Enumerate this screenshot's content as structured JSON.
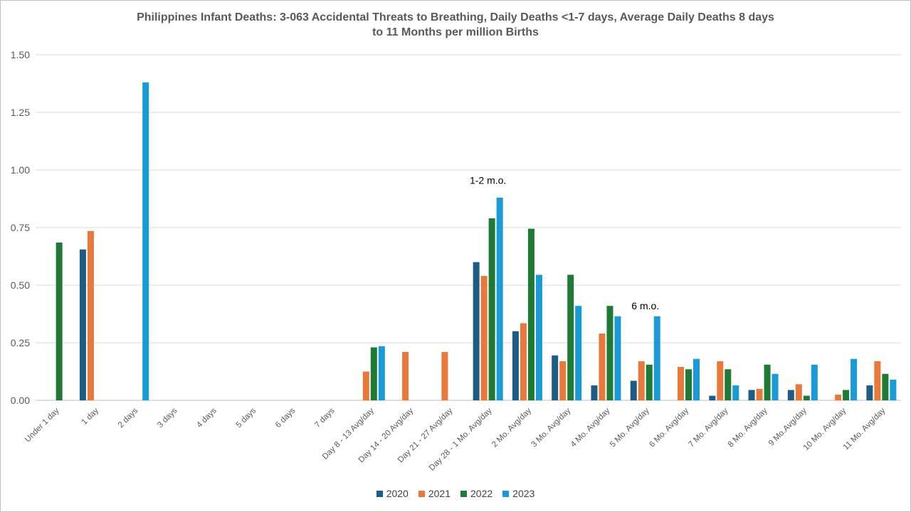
{
  "chart_data": {
    "type": "bar",
    "title_line1": "Philippines Infant Deaths: 3-063 Accidental Threats to Breathing, Daily Deaths <1-7 days, Average Daily Deaths 8 days",
    "title_line2": "to 11 Months per million Births",
    "categories": [
      "Under 1 day",
      "1 day",
      "2 days",
      "3 days",
      "4 days",
      "5 days",
      "6 days",
      "7 days",
      "Day 8 - 13 Avg/day",
      "Day 14 - 20 Avg/day",
      "Day 21 - 27 Avg/day",
      "Day 28 - 1 Mo. Avg/day",
      "2 Mo. Avg/day",
      "3 Mo. Avg/day",
      "4 Mo. Avg/day",
      "5 Mo. Avg/day",
      "6 Mo. Avg/day",
      "7 Mo. Avg/day",
      "8 Mo. Avg/day",
      "9 Mo.Avg/day",
      "10 Mo. Avg/day",
      "11 Mo. Avg/day"
    ],
    "series": [
      {
        "name": "2020",
        "color": "#1f5c85",
        "values": [
          0,
          0.655,
          0,
          0,
          0,
          0,
          0,
          0,
          0,
          0,
          0,
          0.6,
          0.3,
          0.195,
          0.065,
          0.085,
          0,
          0.02,
          0.045,
          0.045,
          0,
          0.065
        ]
      },
      {
        "name": "2021",
        "color": "#e8793a",
        "values": [
          0,
          0.735,
          0,
          0,
          0,
          0,
          0,
          0,
          0.125,
          0.21,
          0.21,
          0.54,
          0.335,
          0.17,
          0.29,
          0.17,
          0.145,
          0.17,
          0.05,
          0.07,
          0.025,
          0.17
        ]
      },
      {
        "name": "2022",
        "color": "#1e7a34",
        "values": [
          0.685,
          0,
          0,
          0,
          0,
          0,
          0,
          0,
          0.23,
          0,
          0,
          0.79,
          0.745,
          0.545,
          0.41,
          0.155,
          0.135,
          0.135,
          0.155,
          0.02,
          0.045,
          0.115
        ]
      },
      {
        "name": "2023",
        "color": "#1a9bd7",
        "values": [
          0,
          0,
          1.38,
          0,
          0,
          0,
          0,
          0,
          0.235,
          0,
          0,
          0.88,
          0.545,
          0.41,
          0.365,
          0.365,
          0.18,
          0.065,
          0.115,
          0.155,
          0.18,
          0.09
        ]
      }
    ],
    "ylim": [
      0,
      1.5
    ],
    "yticks": [
      "0.00",
      "0.25",
      "0.50",
      "0.75",
      "1.00",
      "1.25",
      "1.50"
    ],
    "grid": true,
    "legend_position": "bottom",
    "annotations": [
      {
        "text": "1-2 m.o.",
        "category_index": 11,
        "y": 0.94
      },
      {
        "text": "6 m.o.",
        "category_index": 15,
        "y": 0.395
      }
    ]
  }
}
